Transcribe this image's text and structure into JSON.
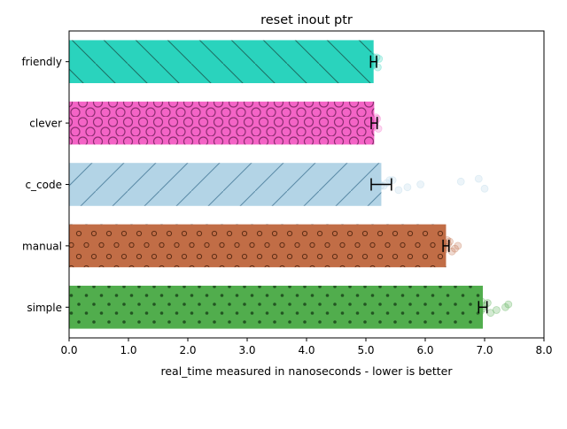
{
  "chart_data": {
    "type": "bar",
    "orientation": "horizontal",
    "title": "reset inout ptr",
    "xlabel": "real_time measured in nanoseconds - lower is better",
    "ylabel": "",
    "xlim": [
      0,
      8
    ],
    "xticks": [
      "0.0",
      "1.0",
      "2.0",
      "3.0",
      "4.0",
      "5.0",
      "6.0",
      "7.0",
      "8.0"
    ],
    "grid": false,
    "categories": [
      "friendly",
      "clever",
      "c_code",
      "manual",
      "simple"
    ],
    "values": [
      5.13,
      5.14,
      5.26,
      6.35,
      6.97
    ],
    "error": [
      0.05,
      0.05,
      0.17,
      0.05,
      0.07
    ],
    "colors": [
      "#2ad3bd",
      "#f464c6",
      "#b3d4e6",
      "#c16d46",
      "#51ad4d"
    ],
    "patterns": [
      "diagonal-back",
      "large-circles",
      "diagonal-forward",
      "small-circles",
      "dots"
    ],
    "samples": [
      [
        5.08,
        5.11,
        5.13,
        5.15,
        5.18,
        5.2,
        5.12,
        5.14,
        5.22,
        5.1
      ],
      [
        5.09,
        5.12,
        5.14,
        5.16,
        5.19,
        5.21,
        5.13,
        5.15,
        5.11,
        5.17
      ],
      [
        5.12,
        5.18,
        5.25,
        5.35,
        5.45,
        5.55,
        5.7,
        5.92,
        6.6,
        6.9,
        7.0,
        5.3,
        5.22,
        5.4
      ],
      [
        6.28,
        6.32,
        6.35,
        6.38,
        6.41,
        6.45,
        6.5,
        6.55,
        6.33,
        6.37
      ],
      [
        6.88,
        6.93,
        6.97,
        7.0,
        7.05,
        7.1,
        7.2,
        7.35,
        7.4,
        6.95
      ]
    ]
  }
}
